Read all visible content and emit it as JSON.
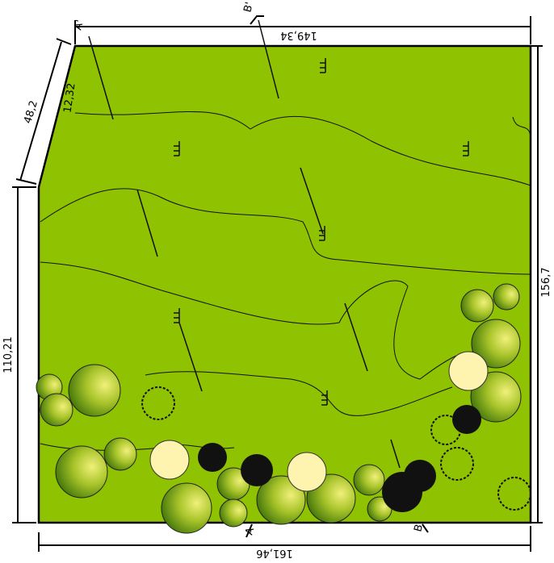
{
  "dimensions": {
    "top": "149,34",
    "left_slant": "48,2",
    "left_inner": "12,32",
    "left": "110,21",
    "right": "156,7",
    "bottom": "161,46"
  },
  "markers": {
    "a_top": "A'",
    "b_top": "B'",
    "a_bottom": "A",
    "b_bottom": "B"
  }
}
